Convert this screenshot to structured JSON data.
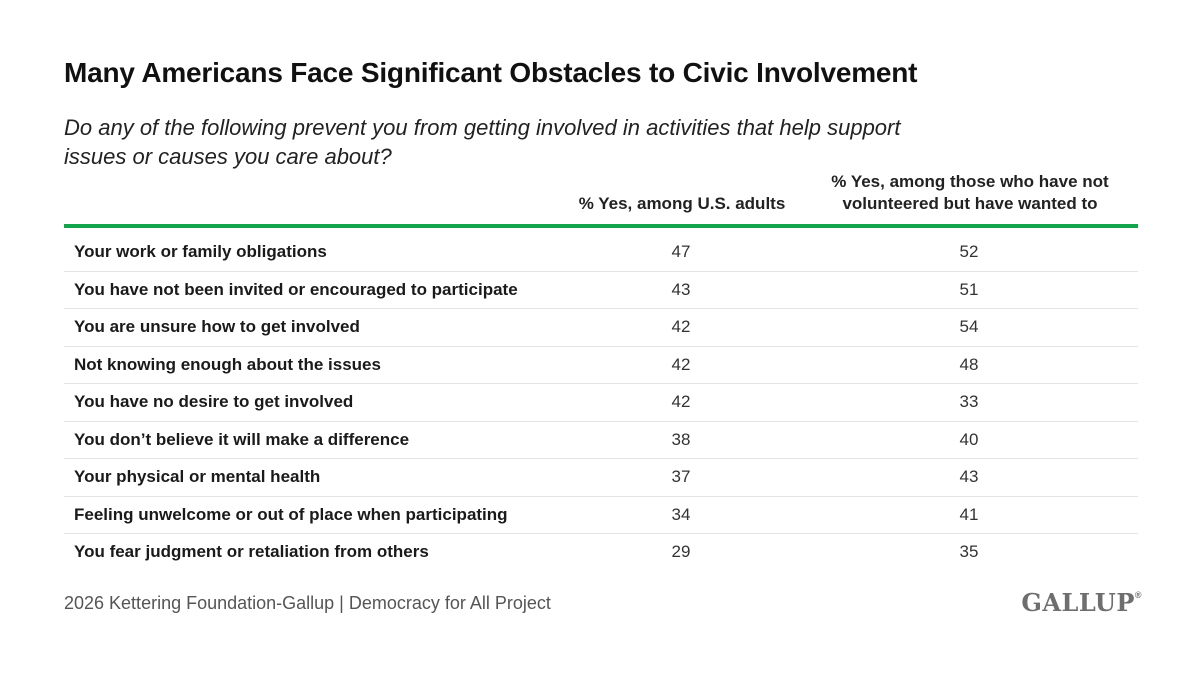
{
  "title": "Many Americans Face Significant Obstacles to Civic Involvement",
  "subtitle": "Do any of the following prevent you from getting involved in activities that help support issues or causes you care about?",
  "columns": {
    "c1": "% Yes, among U.S. adults",
    "c2_line1": "% Yes, among those who have not",
    "c2_line2": "volunteered but have wanted to"
  },
  "accent_color": "#13a54b",
  "footer": "2026 Kettering Foundation-Gallup | Democracy for All Project",
  "logo_text": "GALLUP",
  "logo_mark": "®",
  "chart_data": {
    "type": "table",
    "title": "Many Americans Face Significant Obstacles to Civic Involvement",
    "subtitle": "Do any of the following prevent you from getting involved in activities that help support issues or causes you care about?",
    "columns": [
      "% Yes, among U.S. adults",
      "% Yes, among those who have not volunteered but have wanted to"
    ],
    "rows": [
      {
        "label": "Your work or family obligations",
        "v1": "47",
        "v2": "52"
      },
      {
        "label": "You have not been invited or encouraged to participate",
        "v1": "43",
        "v2": "51"
      },
      {
        "label": "You are unsure how to get involved",
        "v1": "42",
        "v2": "54"
      },
      {
        "label": "Not knowing enough about the issues",
        "v1": "42",
        "v2": "48"
      },
      {
        "label": "You have no desire to get involved",
        "v1": "42",
        "v2": "33"
      },
      {
        "label": "You don’t believe it will make a difference",
        "v1": "38",
        "v2": "40"
      },
      {
        "label": "Your physical or mental health",
        "v1": "37",
        "v2": "43"
      },
      {
        "label": "Feeling unwelcome or out of place when participating",
        "v1": "34",
        "v2": "41"
      },
      {
        "label": "You fear judgment or retaliation from others",
        "v1": "29",
        "v2": "35"
      }
    ]
  }
}
